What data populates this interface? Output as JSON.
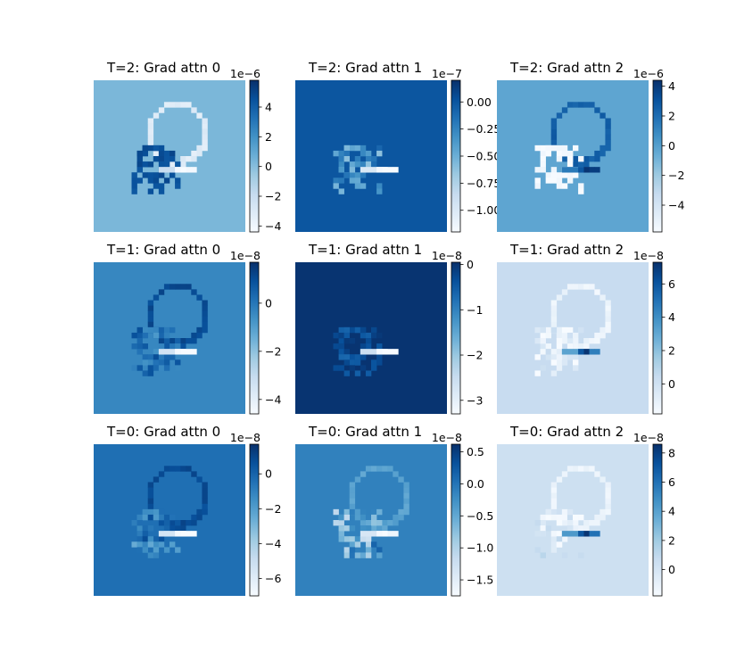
{
  "chart_data": [
    {
      "type": "heatmap",
      "title": "T=2: Grad attn 0",
      "colormap": "Blues",
      "colorbar": {
        "offset_label": "1e−6",
        "min": -4.4,
        "max": 5.8,
        "tick_values": [
          -4,
          -2,
          0,
          2,
          4
        ],
        "tick_labels": [
          "−4",
          "−2",
          "0",
          "2",
          "4"
        ]
      },
      "background_value": 0.3
    },
    {
      "type": "heatmap",
      "title": "T=2: Grad attn 1",
      "colormap": "Blues",
      "colorbar": {
        "offset_label": "1e−7",
        "min": -1.2,
        "max": 0.2,
        "tick_values": [
          0.0,
          -0.25,
          -0.5,
          -0.75,
          -1.0
        ],
        "tick_labels": [
          "0.00",
          "−0.25",
          "−0.50",
          "−0.75",
          "−1.00"
        ]
      },
      "background_value": 0.0
    },
    {
      "type": "heatmap",
      "title": "T=2: Grad attn 2",
      "colormap": "Blues",
      "colorbar": {
        "offset_label": "1e−6",
        "min": -5.8,
        "max": 4.4,
        "tick_values": [
          -4,
          -2,
          0,
          2,
          4
        ],
        "tick_labels": [
          "−4",
          "−2",
          "0",
          "2",
          "4"
        ]
      },
      "background_value": -0.3
    },
    {
      "type": "heatmap",
      "title": "T=1: Grad attn 0",
      "colormap": "Blues",
      "colorbar": {
        "offset_label": "1e−8",
        "min": -4.6,
        "max": 1.7,
        "tick_values": [
          0,
          -2,
          -4
        ],
        "tick_labels": [
          "0",
          "−2",
          "−4"
        ]
      },
      "background_value": -0.4
    },
    {
      "type": "heatmap",
      "title": "T=1: Grad attn 1",
      "colormap": "Blues",
      "colorbar": {
        "offset_label": "1e−8",
        "min": -3.3,
        "max": 0.05,
        "tick_values": [
          0,
          -1,
          -2,
          -3
        ],
        "tick_labels": [
          "0",
          "−1",
          "−2",
          "−3"
        ]
      },
      "background_value": 0.0
    },
    {
      "type": "heatmap",
      "title": "T=1: Grad attn 2",
      "colormap": "Blues",
      "colorbar": {
        "offset_label": "1e−8",
        "min": -1.8,
        "max": 7.3,
        "tick_values": [
          0,
          2,
          4,
          6
        ],
        "tick_labels": [
          "0",
          "2",
          "4",
          "6"
        ]
      },
      "background_value": 0.4
    },
    {
      "type": "heatmap",
      "title": "T=0: Grad attn 0",
      "colormap": "Blues",
      "colorbar": {
        "offset_label": "1e−8",
        "min": -7.0,
        "max": 1.7,
        "tick_values": [
          0,
          -2,
          -4,
          -6
        ],
        "tick_labels": [
          "0",
          "−2",
          "−4",
          "−6"
        ]
      },
      "background_value": -0.4
    },
    {
      "type": "heatmap",
      "title": "T=0: Grad attn 1",
      "colormap": "Blues",
      "colorbar": {
        "offset_label": "1e−8",
        "min": -1.75,
        "max": 0.62,
        "tick_values": [
          0.5,
          0.0,
          -0.5,
          -1.0,
          -1.5
        ],
        "tick_labels": [
          "0.5",
          "0.0",
          "−0.5",
          "−1.0",
          "−1.5"
        ]
      },
      "background_value": -0.12
    },
    {
      "type": "heatmap",
      "title": "T=0: Grad attn 2",
      "colormap": "Blues",
      "colorbar": {
        "offset_label": "1e−8",
        "min": -1.8,
        "max": 8.6,
        "tick_values": [
          0,
          2,
          4,
          6,
          8
        ],
        "tick_labels": [
          "0",
          "2",
          "4",
          "6",
          "8"
        ]
      },
      "background_value": 0.4
    }
  ]
}
